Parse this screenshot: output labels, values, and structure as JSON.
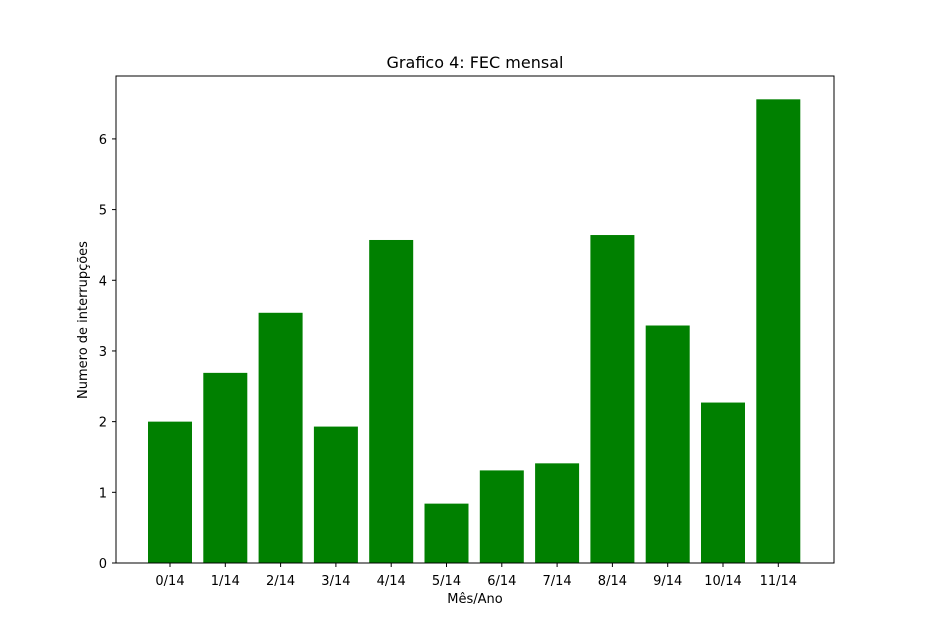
{
  "chart_data": {
    "type": "bar",
    "title": "Grafico 4: FEC mensal",
    "xlabel": "Mês/Ano",
    "ylabel": "Numero de interrupções",
    "categories": [
      "0/14",
      "1/14",
      "2/14",
      "3/14",
      "4/14",
      "5/14",
      "6/14",
      "7/14",
      "8/14",
      "9/14",
      "10/14",
      "11/14"
    ],
    "values": [
      2.0,
      2.69,
      3.54,
      1.93,
      4.57,
      0.84,
      1.31,
      1.41,
      4.64,
      3.36,
      2.27,
      6.56
    ],
    "yticks": [
      0,
      1,
      2,
      3,
      4,
      5,
      6
    ],
    "ylim": [
      0,
      6.89
    ],
    "bar_color": "#008000",
    "grid": false,
    "legend": "none"
  }
}
